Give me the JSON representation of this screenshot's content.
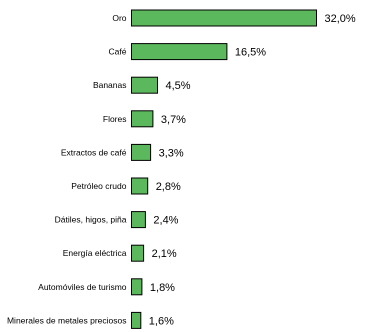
{
  "chart_data": {
    "type": "bar",
    "orientation": "horizontal",
    "categories": [
      "Oro",
      "Café",
      "Bananas",
      "Flores",
      "Extractos de café",
      "Petróleo crudo",
      "Dátiles, higos, piña",
      "Energía eléctrica",
      "Automóviles de turismo",
      "Minerales de metales preciosos"
    ],
    "values": [
      32.0,
      16.5,
      4.5,
      3.7,
      3.3,
      2.8,
      2.4,
      2.1,
      1.8,
      1.6
    ],
    "value_labels": [
      "32,0%",
      "16,5%",
      "4,5%",
      "3,7%",
      "3,3%",
      "2,8%",
      "2,4%",
      "2,1%",
      "1,8%",
      "1,6%"
    ],
    "unit": "%",
    "title": "",
    "xlabel": "",
    "ylabel": "",
    "xlim": [
      0,
      32.0
    ],
    "grid": false,
    "legend": "none",
    "bar_color": "#5cb85c",
    "bar_stroke": "#000000"
  }
}
